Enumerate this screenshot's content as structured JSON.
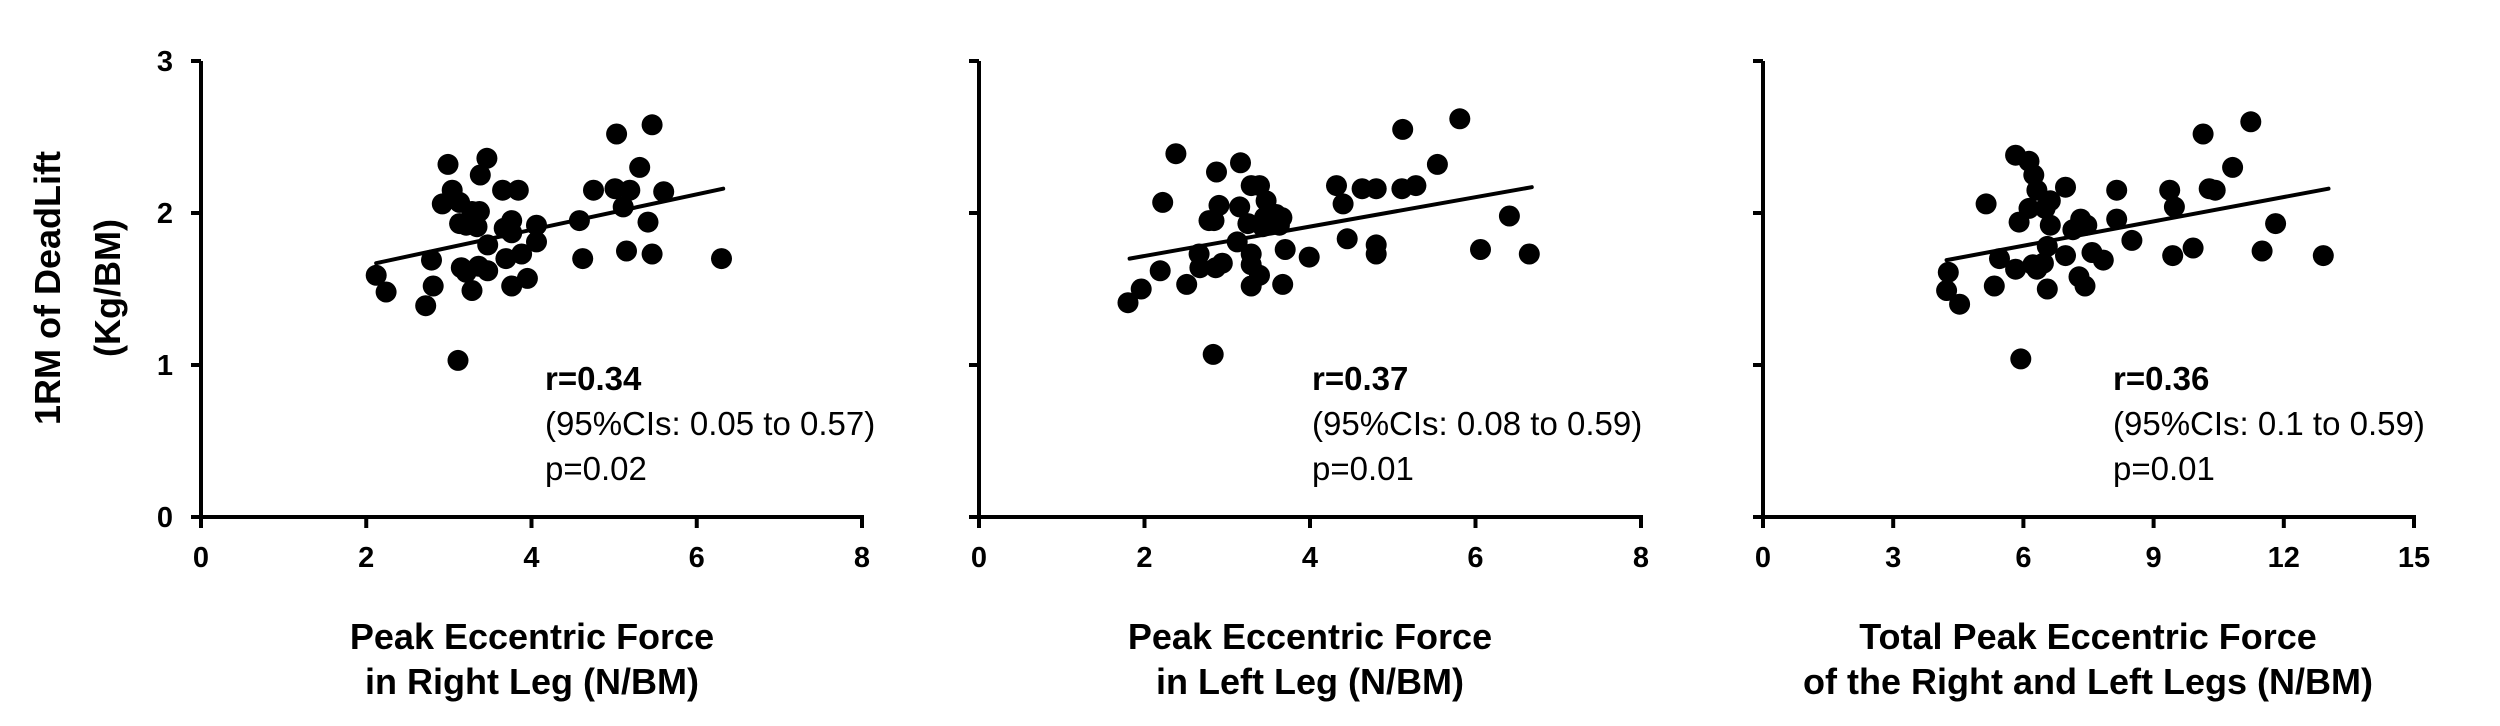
{
  "figure": {
    "ylabel_line1": "1RM of DeadLift",
    "ylabel_line2": "(Kg/BM)",
    "point_color": "#000000",
    "line_color": "#000000"
  },
  "panels": [
    {
      "xtitle_line1": "Peak Eccentric Force",
      "xtitle_line2": "in Right Leg (N/BM)",
      "r_text": "r=0.34",
      "ci_text": "(95%CIs: 0.05 to 0.57)",
      "p_text": "p=0.02"
    },
    {
      "xtitle_line1": "Peak Eccentric Force",
      "xtitle_line2": "in Left Leg (N/BM)",
      "r_text": "r=0.37",
      "ci_text": "(95%CIs: 0.08 to 0.59)",
      "p_text": "p=0.01"
    },
    {
      "xtitle_line1": "Total Peak Eccentric Force",
      "xtitle_line2": "of the Right and Left Legs (N/BM)",
      "r_text": "r=0.36",
      "ci_text": "(95%CIs: 0.1 to 0.59)",
      "p_text": "p=0.01"
    }
  ],
  "chart_data": [
    {
      "type": "scatter",
      "title": "",
      "xlabel": "Peak Eccentric Force in Right Leg (N/BM)",
      "ylabel": "1RM of DeadLift (Kg/BM)",
      "xlim": [
        0,
        8
      ],
      "ylim": [
        0,
        3
      ],
      "xticks": [
        0,
        2,
        4,
        6,
        8
      ],
      "yticks": [
        0,
        1,
        2,
        3
      ],
      "grid": false,
      "legend": null,
      "annotations": [
        "r=0.34",
        "(95%CIs: 0.05 to 0.57)",
        "p=0.02"
      ],
      "trendline": {
        "x": [
          2.12,
          6.32
        ],
        "y": [
          1.67,
          2.16
        ]
      },
      "points": [
        [
          2.12,
          1.59
        ],
        [
          2.24,
          1.48
        ],
        [
          2.72,
          1.39
        ],
        [
          2.79,
          1.69
        ],
        [
          2.81,
          1.52
        ],
        [
          2.99,
          2.32
        ],
        [
          2.92,
          2.06
        ],
        [
          3.04,
          2.15
        ],
        [
          3.13,
          2.07
        ],
        [
          3.13,
          1.93
        ],
        [
          3.15,
          1.64
        ],
        [
          3.21,
          1.61
        ],
        [
          3.11,
          1.03
        ],
        [
          3.28,
          1.49
        ],
        [
          3.21,
          1.92
        ],
        [
          3.28,
          2.01
        ],
        [
          3.37,
          2.01
        ],
        [
          3.34,
          1.91
        ],
        [
          3.36,
          1.65
        ],
        [
          3.38,
          2.25
        ],
        [
          3.46,
          2.36
        ],
        [
          3.47,
          1.79
        ],
        [
          3.47,
          1.62
        ],
        [
          3.65,
          2.15
        ],
        [
          3.67,
          1.9
        ],
        [
          3.69,
          1.7
        ],
        [
          3.76,
          1.95
        ],
        [
          3.76,
          1.87
        ],
        [
          3.76,
          1.52
        ],
        [
          3.84,
          2.15
        ],
        [
          3.88,
          1.73
        ],
        [
          3.95,
          1.57
        ],
        [
          4.06,
          1.92
        ],
        [
          4.06,
          1.81
        ],
        [
          4.58,
          1.95
        ],
        [
          4.62,
          1.7
        ],
        [
          4.75,
          2.15
        ],
        [
          5.03,
          2.52
        ],
        [
          5.01,
          2.16
        ],
        [
          5.11,
          2.04
        ],
        [
          5.15,
          1.75
        ],
        [
          5.19,
          2.15
        ],
        [
          5.31,
          2.3
        ],
        [
          5.41,
          1.94
        ],
        [
          5.46,
          2.58
        ],
        [
          5.46,
          1.73
        ],
        [
          5.6,
          2.14
        ],
        [
          6.3,
          1.7
        ]
      ]
    },
    {
      "type": "scatter",
      "title": "",
      "xlabel": "Peak Eccentric Force in Left Leg (N/BM)",
      "ylabel": "1RM of DeadLift (Kg/BM)",
      "xlim": [
        0,
        8
      ],
      "ylim": [
        0,
        3
      ],
      "xticks": [
        0,
        2,
        4,
        6,
        8
      ],
      "yticks": [
        0,
        1,
        2,
        3
      ],
      "grid": false,
      "legend": null,
      "annotations": [
        "r=0.37",
        "(95%CIs: 0.08 to 0.59)",
        "p=0.01"
      ],
      "trendline": {
        "x": [
          1.82,
          6.68
        ],
        "y": [
          1.7,
          2.17
        ]
      },
      "points": [
        [
          1.8,
          1.41
        ],
        [
          1.96,
          1.5
        ],
        [
          2.19,
          1.62
        ],
        [
          2.22,
          2.07
        ],
        [
          2.38,
          2.39
        ],
        [
          2.51,
          1.53
        ],
        [
          2.66,
          1.73
        ],
        [
          2.67,
          1.64
        ],
        [
          2.78,
          1.95
        ],
        [
          2.84,
          1.95
        ],
        [
          2.86,
          1.64
        ],
        [
          2.87,
          2.27
        ],
        [
          2.9,
          2.05
        ],
        [
          2.94,
          1.67
        ],
        [
          2.83,
          1.07
        ],
        [
          3.12,
          1.81
        ],
        [
          3.15,
          2.04
        ],
        [
          3.16,
          2.33
        ],
        [
          3.25,
          1.93
        ],
        [
          3.29,
          2.18
        ],
        [
          3.29,
          1.73
        ],
        [
          3.29,
          1.66
        ],
        [
          3.29,
          1.52
        ],
        [
          3.39,
          2.18
        ],
        [
          3.39,
          1.59
        ],
        [
          3.43,
          1.91
        ],
        [
          3.45,
          1.97
        ],
        [
          3.47,
          2.08
        ],
        [
          3.59,
          1.99
        ],
        [
          3.63,
          1.92
        ],
        [
          3.66,
          1.97
        ],
        [
          3.67,
          1.53
        ],
        [
          3.7,
          1.76
        ],
        [
          3.99,
          1.71
        ],
        [
          4.32,
          2.18
        ],
        [
          4.4,
          2.06
        ],
        [
          4.45,
          1.83
        ],
        [
          4.63,
          2.16
        ],
        [
          4.8,
          2.16
        ],
        [
          4.8,
          1.79
        ],
        [
          4.8,
          1.73
        ],
        [
          5.11,
          2.16
        ],
        [
          5.12,
          2.55
        ],
        [
          5.28,
          2.18
        ],
        [
          5.54,
          2.32
        ],
        [
          5.81,
          2.62
        ],
        [
          6.06,
          1.76
        ],
        [
          6.41,
          1.98
        ],
        [
          6.65,
          1.73
        ]
      ]
    },
    {
      "type": "scatter",
      "title": "",
      "xlabel": "Total Peak Eccentric Force of the Right and Left Legs (N/BM)",
      "ylabel": "1RM of DeadLift (Kg/BM)",
      "xlim": [
        0,
        15
      ],
      "ylim": [
        0,
        3
      ],
      "xticks": [
        0,
        3,
        6,
        9,
        12,
        15
      ],
      "yticks": [
        0,
        1,
        2,
        3
      ],
      "grid": false,
      "legend": null,
      "annotations": [
        "r=0.36",
        "(95%CIs: 0.1 to 0.59)",
        "p=0.01"
      ],
      "trendline": {
        "x": [
          4.23,
          13.03
        ],
        "y": [
          1.69,
          2.16
        ]
      },
      "points": [
        [
          4.23,
          1.49
        ],
        [
          4.27,
          1.61
        ],
        [
          4.53,
          1.4
        ],
        [
          5.14,
          2.06
        ],
        [
          5.33,
          1.52
        ],
        [
          5.45,
          1.7
        ],
        [
          5.82,
          2.38
        ],
        [
          5.82,
          1.63
        ],
        [
          5.9,
          1.94
        ],
        [
          5.94,
          1.04
        ],
        [
          6.13,
          2.34
        ],
        [
          6.13,
          2.03
        ],
        [
          6.22,
          1.66
        ],
        [
          6.24,
          2.25
        ],
        [
          6.31,
          1.63
        ],
        [
          6.31,
          2.15
        ],
        [
          6.46,
          1.67
        ],
        [
          6.5,
          2.03
        ],
        [
          6.55,
          1.5
        ],
        [
          6.55,
          1.78
        ],
        [
          6.62,
          2.08
        ],
        [
          6.62,
          1.92
        ],
        [
          6.97,
          2.17
        ],
        [
          6.97,
          1.72
        ],
        [
          7.14,
          1.89
        ],
        [
          7.28,
          1.58
        ],
        [
          7.32,
          1.96
        ],
        [
          7.42,
          1.52
        ],
        [
          7.46,
          1.92
        ],
        [
          7.58,
          1.74
        ],
        [
          7.84,
          1.69
        ],
        [
          8.15,
          2.15
        ],
        [
          8.15,
          1.96
        ],
        [
          8.5,
          1.82
        ],
        [
          9.37,
          2.15
        ],
        [
          9.44,
          1.72
        ],
        [
          9.48,
          2.04
        ],
        [
          9.91,
          1.77
        ],
        [
          10.14,
          2.52
        ],
        [
          10.28,
          2.16
        ],
        [
          10.42,
          2.15
        ],
        [
          10.82,
          2.3
        ],
        [
          11.24,
          2.6
        ],
        [
          11.5,
          1.75
        ],
        [
          11.81,
          1.93
        ],
        [
          12.91,
          1.72
        ]
      ]
    }
  ]
}
